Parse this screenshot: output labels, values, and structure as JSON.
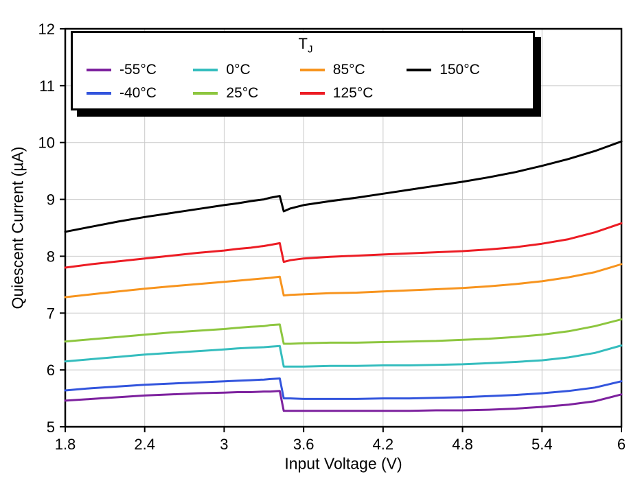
{
  "chart_data": {
    "type": "line",
    "title": "",
    "xlabel": "Input Voltage (V)",
    "ylabel": "Quiescent Current (µA)",
    "xlim": [
      1.8,
      6
    ],
    "ylim": [
      5,
      12
    ],
    "grid": true,
    "grid_color": "#c9c9c9",
    "legend_position": "top-left-inside",
    "xticks": [
      {
        "v": 1.8,
        "label": "1.8"
      },
      {
        "v": 2.4,
        "label": "2.4"
      },
      {
        "v": 3.0,
        "label": "3"
      },
      {
        "v": 3.6,
        "label": "3.6"
      },
      {
        "v": 4.2,
        "label": "4.2"
      },
      {
        "v": 4.8,
        "label": "4.8"
      },
      {
        "v": 5.4,
        "label": "5.4"
      },
      {
        "v": 6.0,
        "label": "6"
      }
    ],
    "yticks": [
      {
        "v": 5,
        "label": "5"
      },
      {
        "v": 6,
        "label": "6"
      },
      {
        "v": 7,
        "label": "7"
      },
      {
        "v": 8,
        "label": "8"
      },
      {
        "v": 9,
        "label": "9"
      },
      {
        "v": 10,
        "label": "10"
      },
      {
        "v": 11,
        "label": "11"
      },
      {
        "v": 12,
        "label": "12"
      }
    ],
    "x": [
      1.8,
      2.0,
      2.2,
      2.4,
      2.6,
      2.8,
      3.0,
      3.1,
      3.2,
      3.3,
      3.35,
      3.42,
      3.45,
      3.5,
      3.6,
      3.8,
      4.0,
      4.2,
      4.4,
      4.6,
      4.8,
      5.0,
      5.2,
      5.4,
      5.6,
      5.8,
      6.0
    ],
    "series": [
      {
        "name": "-55°C",
        "color": "#7D219E",
        "values": [
          5.46,
          5.49,
          5.52,
          5.55,
          5.57,
          5.59,
          5.6,
          5.61,
          5.61,
          5.62,
          5.62,
          5.63,
          5.28,
          5.28,
          5.28,
          5.28,
          5.28,
          5.28,
          5.28,
          5.29,
          5.29,
          5.3,
          5.32,
          5.35,
          5.39,
          5.45,
          5.57
        ]
      },
      {
        "name": "-40°C",
        "color": "#3355DD",
        "values": [
          5.64,
          5.68,
          5.71,
          5.74,
          5.76,
          5.78,
          5.8,
          5.81,
          5.82,
          5.83,
          5.84,
          5.85,
          5.5,
          5.5,
          5.49,
          5.49,
          5.49,
          5.5,
          5.5,
          5.51,
          5.52,
          5.54,
          5.56,
          5.59,
          5.63,
          5.69,
          5.8
        ]
      },
      {
        "name": "0°C",
        "color": "#35BDBE",
        "values": [
          6.15,
          6.19,
          6.23,
          6.27,
          6.3,
          6.33,
          6.36,
          6.38,
          6.39,
          6.4,
          6.41,
          6.42,
          6.06,
          6.06,
          6.06,
          6.07,
          6.07,
          6.08,
          6.08,
          6.09,
          6.1,
          6.12,
          6.14,
          6.17,
          6.22,
          6.3,
          6.43
        ]
      },
      {
        "name": "25°C",
        "color": "#8DC63F",
        "values": [
          6.5,
          6.54,
          6.58,
          6.62,
          6.66,
          6.69,
          6.72,
          6.74,
          6.76,
          6.77,
          6.79,
          6.8,
          6.46,
          6.46,
          6.47,
          6.48,
          6.48,
          6.49,
          6.5,
          6.51,
          6.53,
          6.55,
          6.58,
          6.62,
          6.68,
          6.77,
          6.89
        ]
      },
      {
        "name": "85°C",
        "color": "#F7941E",
        "values": [
          7.28,
          7.33,
          7.38,
          7.43,
          7.47,
          7.51,
          7.55,
          7.57,
          7.59,
          7.61,
          7.62,
          7.64,
          7.31,
          7.32,
          7.33,
          7.35,
          7.36,
          7.38,
          7.4,
          7.42,
          7.44,
          7.47,
          7.51,
          7.56,
          7.63,
          7.72,
          7.86
        ]
      },
      {
        "name": "125°C",
        "color": "#EC1C24",
        "values": [
          7.8,
          7.86,
          7.91,
          7.96,
          8.01,
          8.06,
          8.1,
          8.13,
          8.15,
          8.18,
          8.2,
          8.23,
          7.9,
          7.93,
          7.96,
          7.99,
          8.01,
          8.03,
          8.05,
          8.07,
          8.09,
          8.12,
          8.16,
          8.22,
          8.3,
          8.42,
          8.58
        ]
      },
      {
        "name": "150°C",
        "color": "#000000",
        "values": [
          8.43,
          8.52,
          8.61,
          8.69,
          8.76,
          8.83,
          8.9,
          8.93,
          8.97,
          9.0,
          9.03,
          9.06,
          8.79,
          8.84,
          8.9,
          8.97,
          9.03,
          9.1,
          9.17,
          9.24,
          9.31,
          9.39,
          9.48,
          9.59,
          9.71,
          9.85,
          10.02
        ]
      }
    ]
  },
  "legend": {
    "title_main": "T",
    "title_sub": "J",
    "order": [
      0,
      2,
      4,
      6,
      1,
      3,
      5
    ]
  }
}
